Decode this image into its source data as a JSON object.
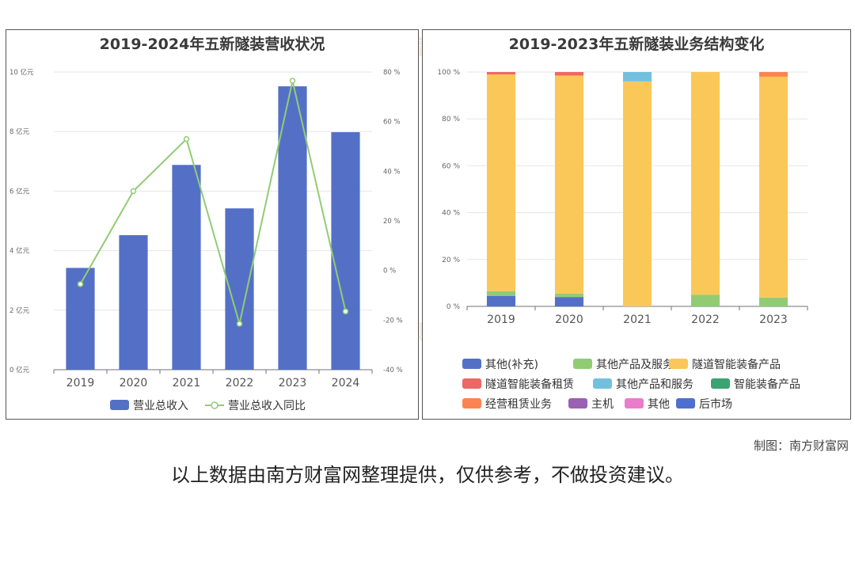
{
  "credit": "制图：南方财富网",
  "disclaimer": "以上数据由南方财富网整理提供，仅供参考，不做投资建议。",
  "watermark": {
    "text": "南方财富网",
    "url": "southmoney.com"
  },
  "chart_data": [
    {
      "type": "bar",
      "title": "2019-2024年五新隧装营收状况",
      "categories": [
        "2019",
        "2020",
        "2021",
        "2022",
        "2023",
        "2024"
      ],
      "series": [
        {
          "name": "营业总收入",
          "type": "bar",
          "axis": "left",
          "color": "#5470c6",
          "values": [
            3.42,
            4.52,
            6.88,
            5.42,
            9.52,
            7.98
          ]
        },
        {
          "name": "营业总收入同比",
          "type": "line",
          "axis": "right",
          "color": "#91cc75",
          "values": [
            -5.5,
            32.0,
            53.0,
            -21.5,
            76.5,
            -16.5
          ]
        }
      ],
      "ylim_left": [
        0,
        10
      ],
      "yticks_left": [
        "0 亿元",
        "2 亿元",
        "4 亿元",
        "6 亿元",
        "8 亿元",
        "10 亿元"
      ],
      "ylim_right": [
        -40,
        80
      ],
      "yticks_right": [
        "-40 %",
        "-20 %",
        "0 %",
        "20 %",
        "40 %",
        "60 %",
        "80 %"
      ],
      "grid": true,
      "legend": "bottom"
    },
    {
      "type": "bar",
      "stacked": true,
      "title": "2019-2023年五新隧装业务结构变化",
      "categories": [
        "2019",
        "2020",
        "2021",
        "2022",
        "2023"
      ],
      "series": [
        {
          "name": "其他(补充)",
          "color": "#5470c6",
          "values": [
            4.5,
            4.0,
            0,
            0,
            0
          ]
        },
        {
          "name": "其他产品及服务",
          "color": "#91cc75",
          "values": [
            2.0,
            1.5,
            0,
            5.0,
            3.8
          ]
        },
        {
          "name": "隧道智能装备产品",
          "color": "#fac858",
          "values": [
            92.5,
            93.0,
            96.0,
            95.0,
            94.2
          ]
        },
        {
          "name": "隧道智能装备租赁",
          "color": "#ee6666",
          "values": [
            1.0,
            1.5,
            0,
            0,
            0
          ]
        },
        {
          "name": "其他产品和服务",
          "color": "#73c0de",
          "values": [
            0,
            0,
            4.0,
            0,
            0
          ]
        },
        {
          "name": "智能装备产品",
          "color": "#3ba272",
          "values": [
            0,
            0,
            0,
            0,
            0
          ]
        },
        {
          "name": "经营租赁业务",
          "color": "#fc8452",
          "values": [
            0,
            0,
            0,
            0,
            2.0
          ]
        },
        {
          "name": "主机",
          "color": "#9a60b4",
          "values": [
            0,
            0,
            0,
            0,
            0
          ]
        },
        {
          "name": "其他",
          "color": "#ea7ccc",
          "values": [
            0,
            0,
            0,
            0,
            0
          ]
        },
        {
          "name": "后市场",
          "color": "#4e6fcf",
          "values": [
            0,
            0,
            0,
            0,
            0
          ]
        }
      ],
      "ylim": [
        0,
        100
      ],
      "yticks": [
        "0 %",
        "20 %",
        "40 %",
        "60 %",
        "80 %",
        "100 %"
      ],
      "grid": true,
      "legend": "bottom"
    }
  ]
}
